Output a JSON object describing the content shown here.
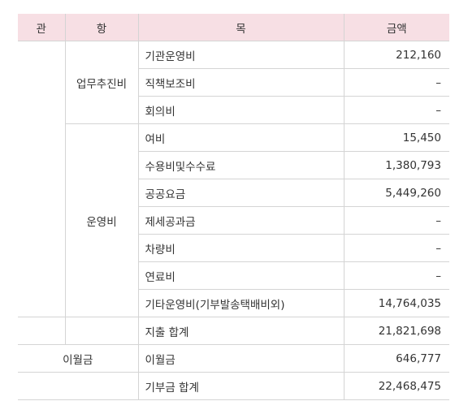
{
  "table": {
    "header": [
      "관",
      "항",
      "목",
      "금액"
    ],
    "groups": [
      {
        "name": "업무추진비",
        "rows": [
          [
            "기관운영비",
            "212,160"
          ],
          [
            "직책보조비",
            "–"
          ],
          [
            "회의비",
            "–"
          ]
        ]
      },
      {
        "name": "운영비",
        "rows": [
          [
            "여비",
            "15,450"
          ],
          [
            "수용비및수수료",
            "1,380,793"
          ],
          [
            "공공요금",
            "5,449,260"
          ],
          [
            "제세공과금",
            "–"
          ],
          [
            "차량비",
            "–"
          ],
          [
            "연료비",
            "–"
          ],
          [
            "기타운영비(기부발송택배비외)",
            "14,764,035"
          ]
        ]
      }
    ],
    "subtotal": {
      "label": "지출 합계",
      "amount": "21,821,698"
    },
    "carryover": {
      "group": "이월금",
      "label": "이월금",
      "amount": "646,777"
    },
    "total": {
      "label": "기부금 합계",
      "amount": "22,468,475"
    }
  }
}
